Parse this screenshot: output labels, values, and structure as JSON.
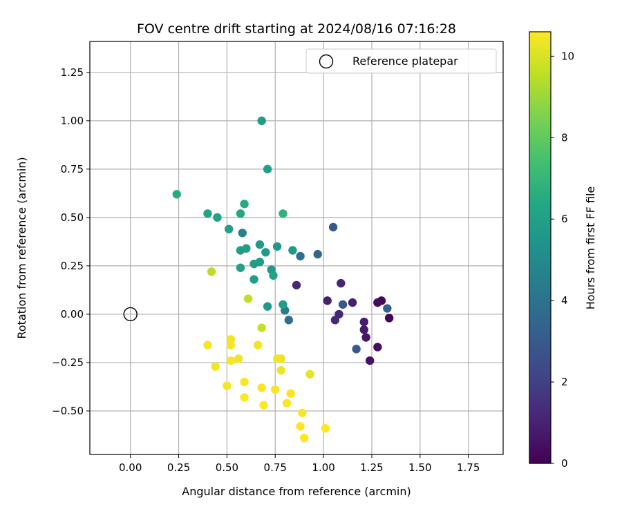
{
  "chart_data": {
    "type": "scatter",
    "title": "FOV centre drift starting at 2024/08/16 07:16:28",
    "xlabel": "Angular distance from reference (arcmin)",
    "ylabel": "Rotation from reference (arcmin)",
    "xlim": [
      -0.21,
      1.93
    ],
    "ylim": [
      -0.725,
      1.41
    ],
    "xticks": [
      0.0,
      0.25,
      0.5,
      0.75,
      1.0,
      1.25,
      1.5,
      1.75
    ],
    "xtick_labels": [
      "0.00",
      "0.25",
      "0.50",
      "0.75",
      "1.00",
      "1.25",
      "1.50",
      "1.75"
    ],
    "yticks": [
      -0.5,
      -0.25,
      0.0,
      0.25,
      0.5,
      0.75,
      1.0,
      1.25
    ],
    "ytick_labels": [
      "−0.50",
      "−0.25",
      "0.00",
      "0.25",
      "0.50",
      "0.75",
      "1.00",
      "1.25"
    ],
    "grid": true,
    "legend": {
      "placement": "top-right",
      "entries": [
        "Reference platepar"
      ]
    },
    "reference_point": {
      "x": 0.0,
      "y": 0.0
    },
    "colorbar": {
      "label": "Hours from first FF file",
      "colormap": "viridis",
      "range": [
        0,
        10.6
      ],
      "ticks": [
        0,
        2,
        4,
        6,
        8,
        10
      ],
      "tick_labels": [
        "0",
        "2",
        "4",
        "6",
        "8",
        "10"
      ]
    },
    "points": [
      {
        "x": 1.33,
        "y": 0.03,
        "h": 3.2
      },
      {
        "x": 1.34,
        "y": -0.02,
        "h": 0.1
      },
      {
        "x": 1.3,
        "y": 0.07,
        "h": 0.2
      },
      {
        "x": 1.28,
        "y": 0.06,
        "h": 0.3
      },
      {
        "x": 1.28,
        "y": -0.17,
        "h": 0.4
      },
      {
        "x": 1.24,
        "y": -0.24,
        "h": 0.5
      },
      {
        "x": 1.22,
        "y": -0.12,
        "h": 0.6
      },
      {
        "x": 1.21,
        "y": -0.08,
        "h": 0.7
      },
      {
        "x": 1.21,
        "y": -0.04,
        "h": 0.8
      },
      {
        "x": 1.15,
        "y": 0.06,
        "h": 0.9
      },
      {
        "x": 1.17,
        "y": -0.18,
        "h": 3.0
      },
      {
        "x": 1.1,
        "y": 0.05,
        "h": 3.0
      },
      {
        "x": 1.09,
        "y": 0.16,
        "h": 1.1
      },
      {
        "x": 1.08,
        "y": 0.0,
        "h": 1.2
      },
      {
        "x": 1.06,
        "y": -0.03,
        "h": 1.3
      },
      {
        "x": 1.02,
        "y": 0.07,
        "h": 0.9
      },
      {
        "x": 0.86,
        "y": 0.15,
        "h": 1.2
      },
      {
        "x": 1.05,
        "y": 0.45,
        "h": 3.0
      },
      {
        "x": 0.97,
        "y": 0.31,
        "h": 3.5
      },
      {
        "x": 0.88,
        "y": 0.3,
        "h": 3.8
      },
      {
        "x": 0.82,
        "y": -0.03,
        "h": 3.8
      },
      {
        "x": 0.8,
        "y": 0.02,
        "h": 4.4
      },
      {
        "x": 0.79,
        "y": 0.05,
        "h": 5.9
      },
      {
        "x": 0.84,
        "y": 0.33,
        "h": 5.7
      },
      {
        "x": 0.76,
        "y": 0.35,
        "h": 5.6
      },
      {
        "x": 0.71,
        "y": 0.04,
        "h": 5.6
      },
      {
        "x": 0.73,
        "y": 0.23,
        "h": 5.7
      },
      {
        "x": 0.74,
        "y": 0.2,
        "h": 6.2
      },
      {
        "x": 0.7,
        "y": 0.32,
        "h": 5.7
      },
      {
        "x": 0.67,
        "y": 0.36,
        "h": 5.7
      },
      {
        "x": 0.67,
        "y": 0.27,
        "h": 5.8
      },
      {
        "x": 0.64,
        "y": 0.26,
        "h": 5.8
      },
      {
        "x": 0.64,
        "y": 0.18,
        "h": 5.9
      },
      {
        "x": 0.6,
        "y": 0.34,
        "h": 5.9
      },
      {
        "x": 0.57,
        "y": 0.33,
        "h": 5.9
      },
      {
        "x": 0.57,
        "y": 0.24,
        "h": 6.0
      },
      {
        "x": 0.58,
        "y": 0.42,
        "h": 4.6
      },
      {
        "x": 0.51,
        "y": 0.44,
        "h": 6.0
      },
      {
        "x": 0.57,
        "y": 0.52,
        "h": 6.3
      },
      {
        "x": 0.59,
        "y": 0.57,
        "h": 6.4
      },
      {
        "x": 0.45,
        "y": 0.5,
        "h": 6.1
      },
      {
        "x": 0.4,
        "y": 0.52,
        "h": 6.2
      },
      {
        "x": 0.24,
        "y": 0.62,
        "h": 6.5
      },
      {
        "x": 0.79,
        "y": 0.52,
        "h": 6.8
      },
      {
        "x": 0.71,
        "y": 0.75,
        "h": 6.0
      },
      {
        "x": 0.68,
        "y": 1.0,
        "h": 5.8
      },
      {
        "x": 0.42,
        "y": 0.22,
        "h": 9.5
      },
      {
        "x": 0.61,
        "y": 0.08,
        "h": 9.6
      },
      {
        "x": 0.68,
        "y": -0.07,
        "h": 9.7
      },
      {
        "x": 0.4,
        "y": -0.16,
        "h": 10.5
      },
      {
        "x": 0.44,
        "y": -0.27,
        "h": 10.4
      },
      {
        "x": 0.5,
        "y": -0.37,
        "h": 10.5
      },
      {
        "x": 0.52,
        "y": -0.13,
        "h": 10.4
      },
      {
        "x": 0.52,
        "y": -0.16,
        "h": 10.5
      },
      {
        "x": 0.52,
        "y": -0.24,
        "h": 10.5
      },
      {
        "x": 0.56,
        "y": -0.23,
        "h": 10.4
      },
      {
        "x": 0.59,
        "y": -0.35,
        "h": 10.5
      },
      {
        "x": 0.59,
        "y": -0.43,
        "h": 10.6
      },
      {
        "x": 0.66,
        "y": -0.16,
        "h": 10.4
      },
      {
        "x": 0.68,
        "y": -0.38,
        "h": 10.5
      },
      {
        "x": 0.69,
        "y": -0.47,
        "h": 10.6
      },
      {
        "x": 0.75,
        "y": -0.39,
        "h": 10.5
      },
      {
        "x": 0.76,
        "y": -0.23,
        "h": 10.4
      },
      {
        "x": 0.78,
        "y": -0.23,
        "h": 10.3
      },
      {
        "x": 0.78,
        "y": -0.29,
        "h": 10.3
      },
      {
        "x": 0.81,
        "y": -0.46,
        "h": 10.5
      },
      {
        "x": 0.83,
        "y": -0.41,
        "h": 10.5
      },
      {
        "x": 0.89,
        "y": -0.51,
        "h": 10.5
      },
      {
        "x": 0.88,
        "y": -0.58,
        "h": 10.6
      },
      {
        "x": 0.9,
        "y": -0.64,
        "h": 10.6
      },
      {
        "x": 0.93,
        "y": -0.31,
        "h": 10.2
      },
      {
        "x": 1.01,
        "y": -0.59,
        "h": 10.6
      }
    ]
  }
}
